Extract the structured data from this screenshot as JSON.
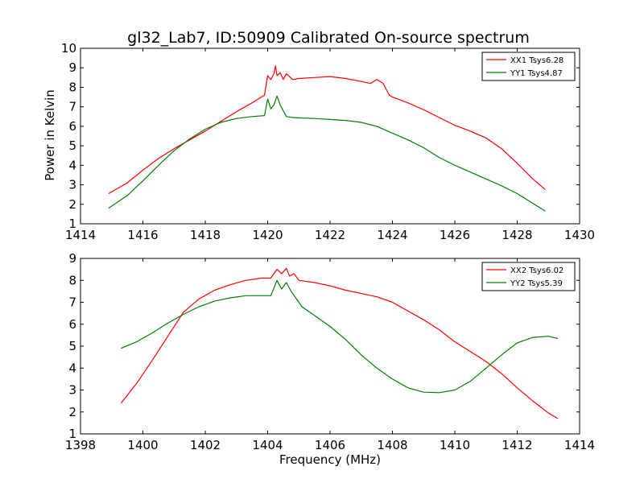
{
  "figure": {
    "title": "gl32_Lab7, ID:50909 Calibrated On-source spectrum",
    "xlabel": "Frequency (MHz)"
  },
  "chart_data": [
    {
      "type": "line",
      "ylabel": "Power in Kelvin",
      "xlabel": "",
      "xlim": [
        1414,
        1430
      ],
      "ylim": [
        1,
        10
      ],
      "xticks": [
        1414,
        1416,
        1418,
        1420,
        1422,
        1424,
        1426,
        1428,
        1430
      ],
      "yticks": [
        1,
        2,
        3,
        4,
        5,
        6,
        7,
        8,
        9,
        10
      ],
      "grid": false,
      "legend": "top-right",
      "series": [
        {
          "name": "XX1 Tsys6.28",
          "color": "#ff0000",
          "x": [
            1414.9,
            1415.5,
            1416.0,
            1416.5,
            1417.0,
            1417.5,
            1418.0,
            1418.5,
            1419.0,
            1419.5,
            1419.9,
            1420.0,
            1420.1,
            1420.2,
            1420.25,
            1420.3,
            1420.4,
            1420.5,
            1420.6,
            1420.8,
            1421.0,
            1421.5,
            1422.0,
            1422.5,
            1423.0,
            1423.3,
            1423.5,
            1423.7,
            1423.9,
            1424.0,
            1424.5,
            1425.0,
            1425.5,
            1426.0,
            1426.5,
            1427.0,
            1427.5,
            1428.0,
            1428.5,
            1428.9
          ],
          "values": [
            2.55,
            3.1,
            3.75,
            4.35,
            4.85,
            5.3,
            5.75,
            6.25,
            6.75,
            7.2,
            7.6,
            8.6,
            8.4,
            8.7,
            9.1,
            8.6,
            8.75,
            8.4,
            8.7,
            8.4,
            8.45,
            8.5,
            8.55,
            8.45,
            8.3,
            8.2,
            8.4,
            8.2,
            7.6,
            7.5,
            7.2,
            6.85,
            6.45,
            6.05,
            5.75,
            5.4,
            4.85,
            4.1,
            3.3,
            2.75
          ]
        },
        {
          "name": "YY1 Tsys4.87",
          "color": "#008000",
          "x": [
            1414.9,
            1415.5,
            1416.0,
            1416.5,
            1417.0,
            1417.5,
            1418.0,
            1418.5,
            1419.0,
            1419.5,
            1419.9,
            1420.0,
            1420.1,
            1420.2,
            1420.3,
            1420.4,
            1420.5,
            1420.6,
            1420.8,
            1421.5,
            1422.0,
            1422.5,
            1423.0,
            1423.5,
            1424.0,
            1424.5,
            1425.0,
            1425.5,
            1426.0,
            1426.5,
            1427.0,
            1427.5,
            1428.0,
            1428.5,
            1428.9
          ],
          "values": [
            1.8,
            2.45,
            3.2,
            4.0,
            4.75,
            5.35,
            5.85,
            6.2,
            6.4,
            6.5,
            6.55,
            7.4,
            6.9,
            7.1,
            7.55,
            7.1,
            6.8,
            6.5,
            6.45,
            6.4,
            6.35,
            6.3,
            6.2,
            6.0,
            5.65,
            5.3,
            4.9,
            4.4,
            4.0,
            3.65,
            3.3,
            2.95,
            2.55,
            2.05,
            1.65
          ]
        }
      ]
    },
    {
      "type": "line",
      "ylabel": "",
      "xlabel": "Frequency (MHz)",
      "xlim": [
        1398,
        1414
      ],
      "ylim": [
        1,
        9
      ],
      "xticks": [
        1398,
        1400,
        1402,
        1404,
        1406,
        1408,
        1410,
        1412,
        1414
      ],
      "yticks": [
        1,
        2,
        3,
        4,
        5,
        6,
        7,
        8,
        9
      ],
      "grid": false,
      "legend": "top-right",
      "series": [
        {
          "name": "XX2 Tsys6.02",
          "color": "#ff0000",
          "x": [
            1399.3,
            1399.8,
            1400.3,
            1400.8,
            1401.3,
            1401.8,
            1402.3,
            1402.8,
            1403.3,
            1403.8,
            1404.1,
            1404.3,
            1404.45,
            1404.6,
            1404.7,
            1404.85,
            1405.0,
            1405.5,
            1406.0,
            1406.5,
            1407.0,
            1407.5,
            1408.0,
            1408.5,
            1409.0,
            1409.5,
            1410.0,
            1410.5,
            1411.0,
            1411.5,
            1412.0,
            1412.5,
            1413.0,
            1413.3
          ],
          "values": [
            2.4,
            3.3,
            4.35,
            5.45,
            6.55,
            7.15,
            7.55,
            7.8,
            8.0,
            8.1,
            8.1,
            8.5,
            8.3,
            8.55,
            8.2,
            8.3,
            8.0,
            7.9,
            7.75,
            7.55,
            7.4,
            7.25,
            7.0,
            6.6,
            6.2,
            5.75,
            5.2,
            4.75,
            4.3,
            3.75,
            3.1,
            2.5,
            1.95,
            1.7
          ]
        },
        {
          "name": "YY2 Tsys5.39",
          "color": "#008000",
          "x": [
            1399.3,
            1399.8,
            1400.3,
            1400.8,
            1401.3,
            1401.8,
            1402.3,
            1402.8,
            1403.3,
            1403.8,
            1404.1,
            1404.3,
            1404.45,
            1404.6,
            1404.75,
            1404.9,
            1405.1,
            1405.5,
            1406.0,
            1406.5,
            1407.0,
            1407.5,
            1408.0,
            1408.5,
            1409.0,
            1409.5,
            1410.0,
            1410.5,
            1411.0,
            1411.5,
            1412.0,
            1412.5,
            1413.0,
            1413.3
          ],
          "values": [
            4.9,
            5.2,
            5.6,
            6.05,
            6.45,
            6.8,
            7.05,
            7.2,
            7.3,
            7.3,
            7.3,
            8.0,
            7.6,
            7.9,
            7.5,
            7.2,
            6.8,
            6.4,
            5.9,
            5.3,
            4.6,
            4.0,
            3.5,
            3.1,
            2.9,
            2.88,
            3.0,
            3.4,
            4.0,
            4.6,
            5.15,
            5.4,
            5.45,
            5.35
          ]
        }
      ]
    }
  ]
}
